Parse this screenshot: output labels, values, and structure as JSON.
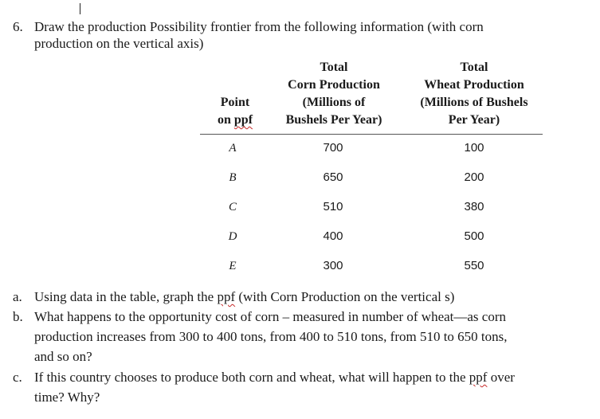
{
  "question": {
    "number": "6.",
    "line1": "Draw the production Possibility frontier from the following information (with corn",
    "line2": "production on the vertical axis)"
  },
  "table": {
    "headers": {
      "point": [
        "Point",
        "on ppf"
      ],
      "corn": [
        "Total",
        "Corn Production",
        "(Millions of",
        "Bushels Per Year)"
      ],
      "wheat": [
        "Total",
        "Wheat Production",
        "(Millions of Bushels",
        "Per Year)"
      ]
    },
    "rows": [
      {
        "point": "A",
        "corn": "700",
        "wheat": "100"
      },
      {
        "point": "B",
        "corn": "650",
        "wheat": "200"
      },
      {
        "point": "C",
        "corn": "510",
        "wheat": "380"
      },
      {
        "point": "D",
        "corn": "400",
        "wheat": "500"
      },
      {
        "point": "E",
        "corn": "300",
        "wheat": "550"
      }
    ]
  },
  "subquestions": [
    {
      "label": "a.",
      "lines": [
        "Using data in the table, graph the ppf (with Corn Production on the vertical s)"
      ]
    },
    {
      "label": "b.",
      "lines": [
        "What happens to the opportunity cost of corn – measured in number of wheat—as corn",
        "production increases from 300 to 400 tons, from 400 to 510 tons, from 510 to 650 tons,",
        "and so on?"
      ]
    },
    {
      "label": "c.",
      "lines": [
        "If this country chooses to produce both corn and wheat, what will happen to the ppf over",
        "time? Why?"
      ]
    }
  ]
}
